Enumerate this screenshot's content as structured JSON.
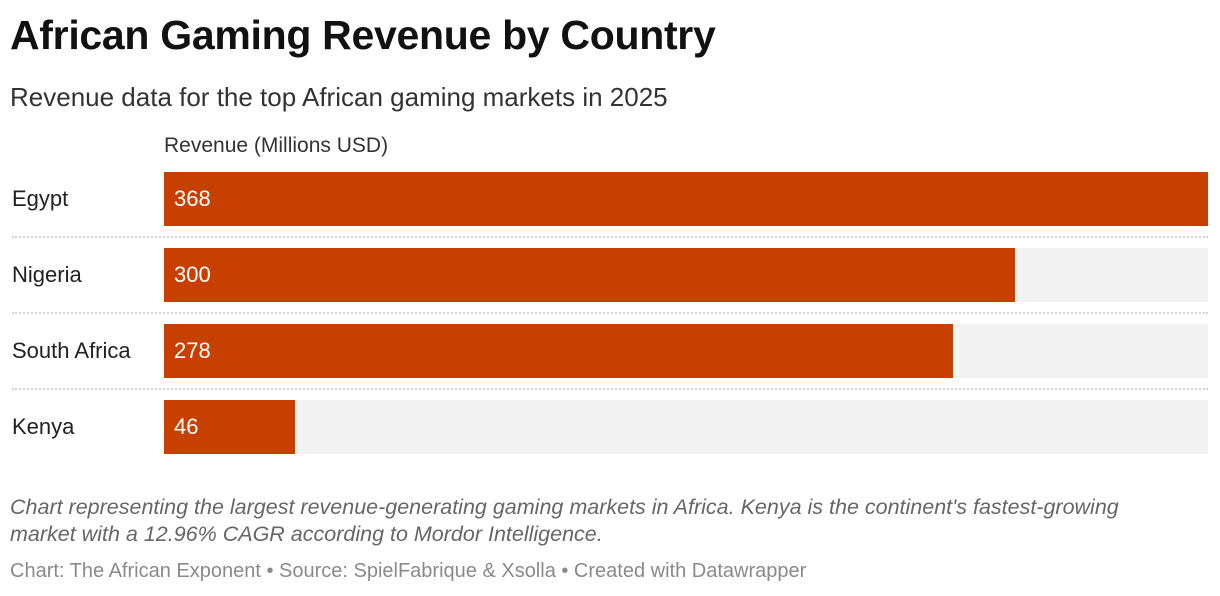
{
  "header": {
    "title": "African Gaming Revenue by Country",
    "subtitle": "Revenue data for the top African gaming markets in 2025"
  },
  "chart_data": {
    "type": "bar",
    "orientation": "horizontal",
    "title": "African Gaming Revenue by Country",
    "subtitle": "Revenue data for the top African gaming markets in 2025",
    "column_header": "Revenue (Millions USD)",
    "xlabel": "Revenue (Millions USD)",
    "ylabel": "",
    "categories": [
      "Egypt",
      "Nigeria",
      "South Africa",
      "Kenya"
    ],
    "values": [
      368,
      300,
      278,
      46
    ],
    "value_labels": [
      "368",
      "300",
      "278",
      "46"
    ],
    "xlim": [
      0,
      368
    ],
    "grid": false,
    "legend": "none",
    "bar_color": "#c84000",
    "track_color": "#f2f2f2"
  },
  "notes": "Chart representing the largest revenue-generating gaming markets in Africa. Kenya is the continent's fastest-growing market with a 12.96% CAGR according to Mordor Intelligence.",
  "footer": {
    "text": "Chart: The African Exponent • Source: SpielFabrique & Xsolla • Created with Datawrapper"
  }
}
